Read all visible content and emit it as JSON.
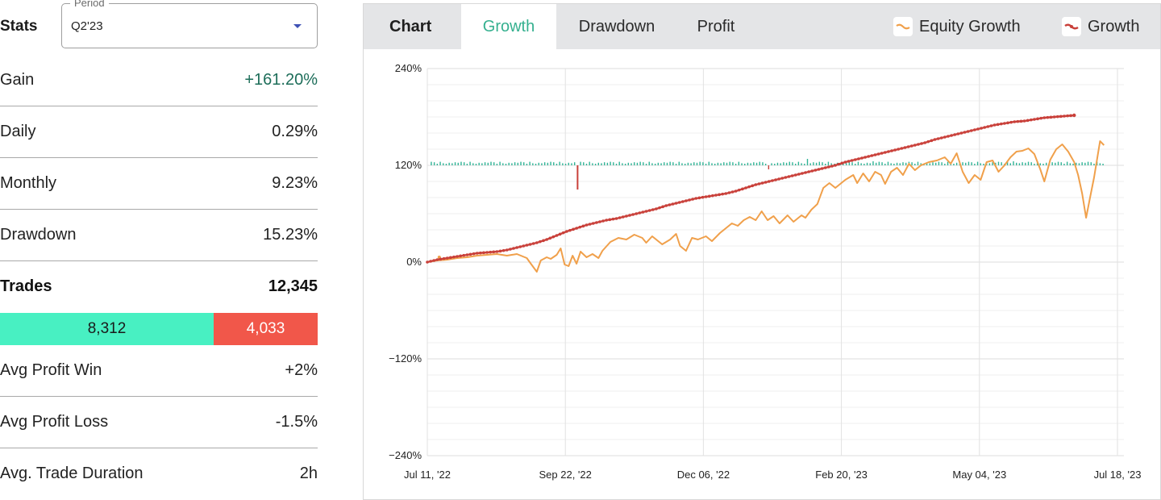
{
  "stats": {
    "title": "Stats",
    "period": {
      "legend": "Period",
      "value": "Q2'23"
    },
    "rows": [
      {
        "label": "Gain",
        "value": "+161.20%"
      },
      {
        "label": "Daily",
        "value": "0.29%"
      },
      {
        "label": "Monthly",
        "value": "9.23%"
      },
      {
        "label": "Drawdown",
        "value": "15.23%"
      },
      {
        "label": "Trades",
        "value": "12,345"
      }
    ],
    "wins": "8,312",
    "losses": "4,033",
    "rows2": [
      {
        "label": "Avg Profit Win",
        "value": "+2%"
      },
      {
        "label": "Avg Profit Loss",
        "value": "-1.5%"
      },
      {
        "label": "Avg. Trade Duration",
        "value": "2h"
      }
    ]
  },
  "chart_panel": {
    "title": "Chart",
    "tabs": [
      "Growth",
      "Drawdown",
      "Profit"
    ],
    "active_tab": "Growth",
    "legend": [
      "Equity Growth",
      "Growth"
    ]
  },
  "colors": {
    "accent": "#35b08f",
    "win": "#48f0c2",
    "loss": "#f1574a",
    "equity": "#f0a04b",
    "growth": "#c9403a",
    "bar_pos": "#2fb395",
    "bar_neg": "#c9403a"
  },
  "chart_data": {
    "type": "line",
    "xlabels": [
      "Jul 11, '22",
      "Sep 22, '22",
      "Dec 06, '22",
      "Feb 20, '23",
      "May 04, '23",
      "Jul 18, '23"
    ],
    "ytick_labels": [
      "240%",
      "120%",
      "0%",
      "−120%",
      "−240%"
    ],
    "ylim": [
      -240,
      240
    ],
    "grid": true,
    "legend_position": "top-right",
    "series": [
      {
        "name": "Growth",
        "style": "line-with-markers",
        "points": [
          [
            0,
            0
          ],
          [
            5,
            3
          ],
          [
            10,
            5
          ],
          [
            15,
            7
          ],
          [
            20,
            9
          ],
          [
            25,
            11
          ],
          [
            30,
            12
          ],
          [
            35,
            13
          ],
          [
            40,
            15
          ],
          [
            45,
            18
          ],
          [
            50,
            21
          ],
          [
            55,
            24
          ],
          [
            60,
            28
          ],
          [
            65,
            33
          ],
          [
            70,
            38
          ],
          [
            75,
            42
          ],
          [
            80,
            46
          ],
          [
            85,
            49
          ],
          [
            90,
            52
          ],
          [
            95,
            54
          ],
          [
            100,
            57
          ],
          [
            105,
            60
          ],
          [
            110,
            63
          ],
          [
            115,
            66
          ],
          [
            120,
            70
          ],
          [
            125,
            73
          ],
          [
            130,
            76
          ],
          [
            135,
            79
          ],
          [
            140,
            81
          ],
          [
            145,
            83
          ],
          [
            150,
            85
          ],
          [
            155,
            88
          ],
          [
            160,
            92
          ],
          [
            165,
            96
          ],
          [
            170,
            99
          ],
          [
            175,
            102
          ],
          [
            180,
            105
          ],
          [
            185,
            108
          ],
          [
            190,
            111
          ],
          [
            195,
            114
          ],
          [
            200,
            117
          ],
          [
            205,
            120
          ],
          [
            210,
            124
          ],
          [
            215,
            127
          ],
          [
            220,
            130
          ],
          [
            225,
            133
          ],
          [
            230,
            136
          ],
          [
            235,
            139
          ],
          [
            240,
            142
          ],
          [
            245,
            145
          ],
          [
            250,
            148
          ],
          [
            255,
            152
          ],
          [
            260,
            155
          ],
          [
            265,
            158
          ],
          [
            270,
            161
          ],
          [
            275,
            164
          ],
          [
            280,
            167
          ],
          [
            285,
            170
          ],
          [
            290,
            172
          ],
          [
            295,
            174
          ],
          [
            300,
            175
          ],
          [
            305,
            177
          ],
          [
            310,
            179
          ],
          [
            315,
            180
          ],
          [
            320,
            181
          ],
          [
            325,
            182
          ]
        ]
      },
      {
        "name": "Equity Growth",
        "style": "line",
        "points": [
          [
            0,
            0
          ],
          [
            5,
            2
          ],
          [
            10,
            3
          ],
          [
            15,
            5
          ],
          [
            20,
            6
          ],
          [
            25,
            8
          ],
          [
            30,
            9
          ],
          [
            35,
            10
          ],
          [
            40,
            8
          ],
          [
            45,
            10
          ],
          [
            50,
            5
          ],
          [
            52,
            -2
          ],
          [
            55,
            -12
          ],
          [
            57,
            2
          ],
          [
            60,
            6
          ],
          [
            62,
            4
          ],
          [
            65,
            9
          ],
          [
            67,
            17
          ],
          [
            69,
            -3
          ],
          [
            71,
            -5
          ],
          [
            73,
            8
          ],
          [
            75,
            -2
          ],
          [
            77,
            13
          ],
          [
            80,
            6
          ],
          [
            83,
            10
          ],
          [
            86,
            5
          ],
          [
            88,
            14
          ],
          [
            92,
            25
          ],
          [
            96,
            30
          ],
          [
            100,
            28
          ],
          [
            104,
            34
          ],
          [
            108,
            30
          ],
          [
            110,
            24
          ],
          [
            113,
            32
          ],
          [
            118,
            22
          ],
          [
            122,
            28
          ],
          [
            125,
            35
          ],
          [
            127,
            20
          ],
          [
            130,
            14
          ],
          [
            133,
            30
          ],
          [
            136,
            28
          ],
          [
            140,
            32
          ],
          [
            143,
            26
          ],
          [
            147,
            36
          ],
          [
            150,
            42
          ],
          [
            153,
            48
          ],
          [
            156,
            45
          ],
          [
            159,
            52
          ],
          [
            162,
            56
          ],
          [
            165,
            52
          ],
          [
            168,
            63
          ],
          [
            171,
            52
          ],
          [
            174,
            57
          ],
          [
            177,
            48
          ],
          [
            181,
            58
          ],
          [
            184,
            50
          ],
          [
            188,
            58
          ],
          [
            190,
            55
          ],
          [
            193,
            65
          ],
          [
            196,
            72
          ],
          [
            199,
            92
          ],
          [
            202,
            98
          ],
          [
            205,
            92
          ],
          [
            210,
            102
          ],
          [
            214,
            108
          ],
          [
            216,
            98
          ],
          [
            219,
            110
          ],
          [
            222,
            100
          ],
          [
            225,
            112
          ],
          [
            228,
            108
          ],
          [
            230,
            97
          ],
          [
            233,
            112
          ],
          [
            236,
            117
          ],
          [
            239,
            108
          ],
          [
            242,
            122
          ],
          [
            245,
            114
          ],
          [
            248,
            120
          ],
          [
            252,
            124
          ],
          [
            256,
            126
          ],
          [
            260,
            130
          ],
          [
            263,
            122
          ],
          [
            266,
            135
          ],
          [
            269,
            112
          ],
          [
            272,
            98
          ],
          [
            275,
            108
          ],
          [
            278,
            102
          ],
          [
            281,
            124
          ],
          [
            284,
            126
          ],
          [
            287,
            112
          ],
          [
            290,
            120
          ],
          [
            293,
            130
          ],
          [
            296,
            137
          ],
          [
            299,
            138
          ],
          [
            302,
            141
          ],
          [
            305,
            134
          ],
          [
            308,
            115
          ],
          [
            310,
            100
          ],
          [
            313,
            127
          ],
          [
            316,
            140
          ],
          [
            319,
            146
          ],
          [
            322,
            137
          ],
          [
            325,
            124
          ],
          [
            327,
            108
          ],
          [
            329,
            85
          ],
          [
            331,
            55
          ],
          [
            333,
            80
          ],
          [
            335,
            105
          ],
          [
            338,
            150
          ],
          [
            340,
            145
          ]
        ]
      },
      {
        "name": "Daily",
        "style": "bars",
        "baseline": 120,
        "notable": [
          [
            24,
            -3
          ],
          [
            76,
            -30
          ],
          [
            191,
            8
          ],
          [
            172,
            -5
          ],
          [
            224,
            5
          ],
          [
            295,
            5
          ]
        ]
      }
    ]
  }
}
